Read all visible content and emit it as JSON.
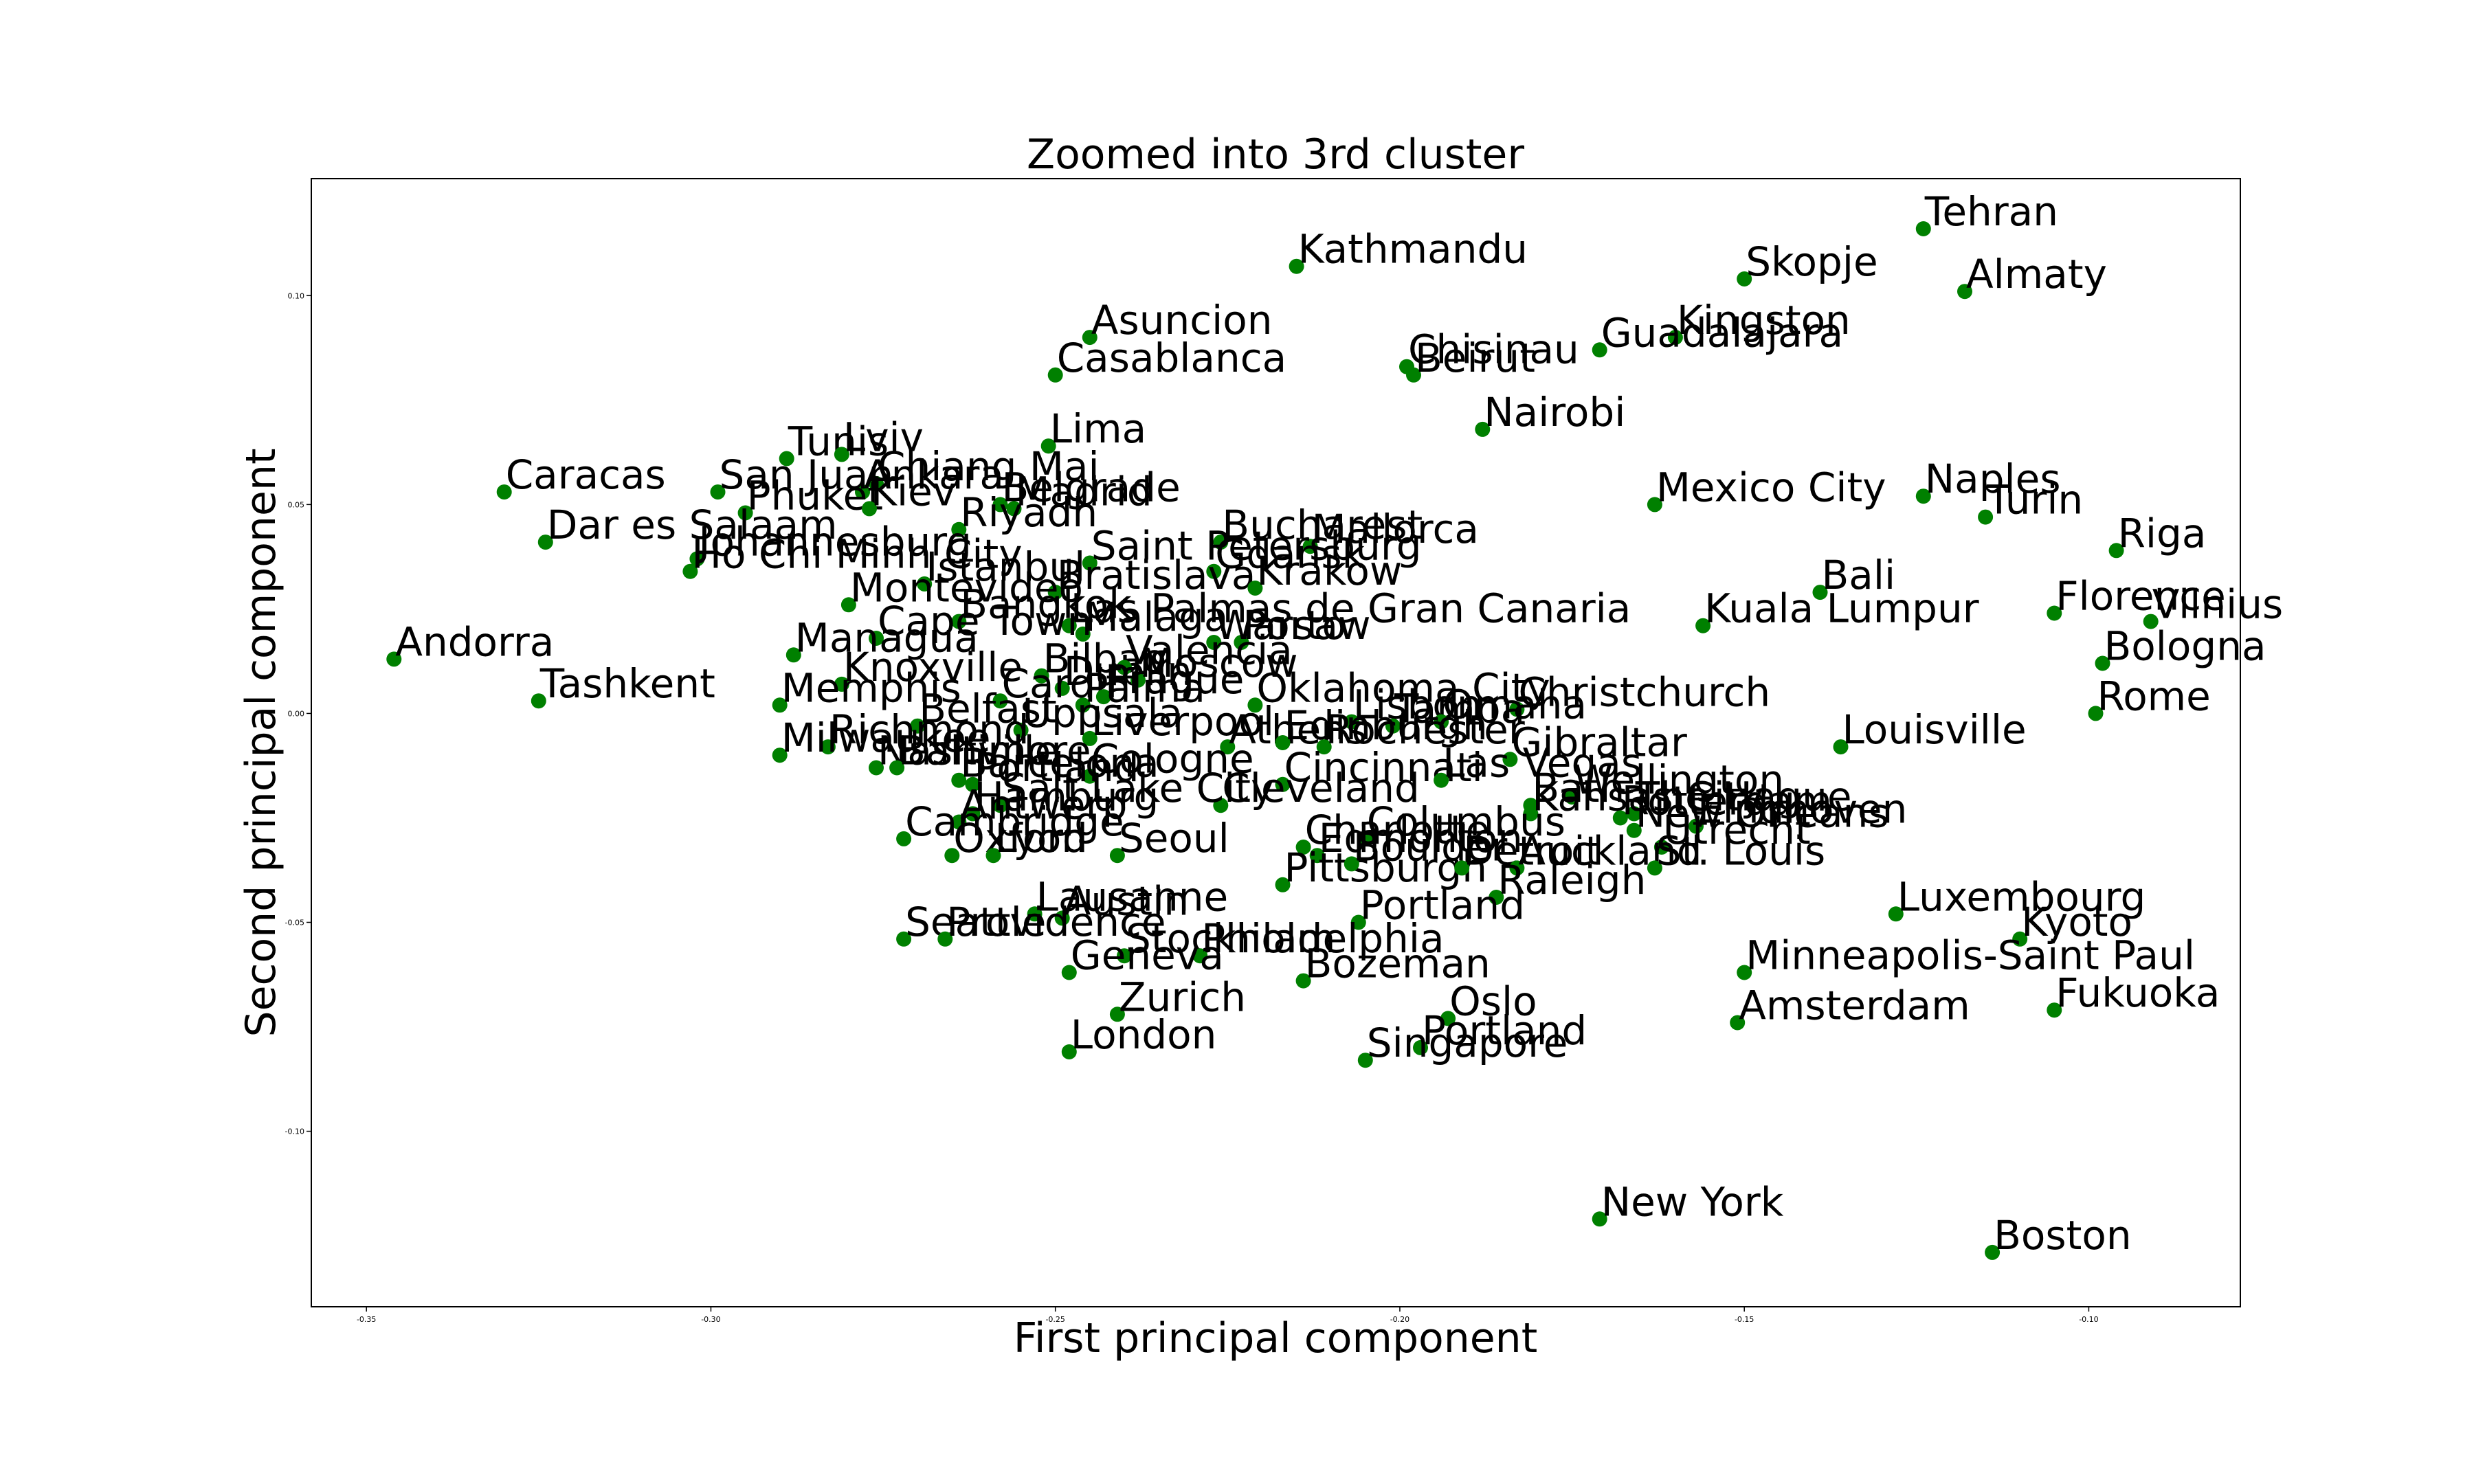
{
  "chart_data": {
    "type": "scatter",
    "title": "Zoomed into 3rd cluster",
    "xlabel": "First principal component",
    "ylabel": "Second principal component",
    "xlim": [
      -0.358,
      -0.078
    ],
    "ylim": [
      -0.142,
      0.128
    ],
    "xticks": [
      {
        "value": -0.35,
        "label": "-0.35"
      },
      {
        "value": -0.3,
        "label": "-0.30"
      },
      {
        "value": -0.25,
        "label": "-0.25"
      },
      {
        "value": -0.2,
        "label": "-0.20"
      },
      {
        "value": -0.15,
        "label": "-0.15"
      },
      {
        "value": -0.1,
        "label": "-0.10"
      }
    ],
    "yticks": [
      {
        "value": 0.1,
        "label": "0.10"
      },
      {
        "value": 0.05,
        "label": "0.05"
      },
      {
        "value": 0.0,
        "label": "0.00"
      },
      {
        "value": -0.05,
        "label": "-0.05"
      },
      {
        "value": -0.1,
        "label": "-0.10"
      }
    ],
    "grid": false,
    "marker_color": "#008000",
    "points": [
      {
        "label": "Tehran",
        "x": -0.124,
        "y": 0.116
      },
      {
        "label": "Skopje",
        "x": -0.15,
        "y": 0.104
      },
      {
        "label": "Almaty",
        "x": -0.118,
        "y": 0.101
      },
      {
        "label": "Kathmandu",
        "x": -0.215,
        "y": 0.107
      },
      {
        "label": "Asuncion",
        "x": -0.245,
        "y": 0.09
      },
      {
        "label": "Casablanca",
        "x": -0.25,
        "y": 0.081
      },
      {
        "label": "Kingston",
        "x": -0.16,
        "y": 0.09
      },
      {
        "label": "Guadalajara",
        "x": -0.171,
        "y": 0.087
      },
      {
        "label": "Chisinau",
        "x": -0.199,
        "y": 0.083
      },
      {
        "label": "Beirut",
        "x": -0.198,
        "y": 0.081
      },
      {
        "label": "Nairobi",
        "x": -0.188,
        "y": 0.068
      },
      {
        "label": "Lima",
        "x": -0.251,
        "y": 0.064
      },
      {
        "label": "Tunis",
        "x": -0.289,
        "y": 0.061
      },
      {
        "label": "Lviv",
        "x": -0.281,
        "y": 0.062
      },
      {
        "label": "Chiang Mai",
        "x": -0.276,
        "y": 0.055
      },
      {
        "label": "Ankara",
        "x": -0.278,
        "y": 0.053
      },
      {
        "label": "Belgrade",
        "x": -0.258,
        "y": 0.05
      },
      {
        "label": "Caracas",
        "x": -0.33,
        "y": 0.053
      },
      {
        "label": "San Juan",
        "x": -0.299,
        "y": 0.053
      },
      {
        "label": "Phuket",
        "x": -0.295,
        "y": 0.048
      },
      {
        "label": "Kiev",
        "x": -0.277,
        "y": 0.049
      },
      {
        "label": "Madrid",
        "x": -0.256,
        "y": 0.049
      },
      {
        "label": "Riyadh",
        "x": -0.264,
        "y": 0.044
      },
      {
        "label": "Mexico City",
        "x": -0.163,
        "y": 0.05
      },
      {
        "label": "Naples",
        "x": -0.124,
        "y": 0.052
      },
      {
        "label": "Turin",
        "x": -0.115,
        "y": 0.047
      },
      {
        "label": "Riga",
        "x": -0.096,
        "y": 0.039
      },
      {
        "label": "Dar es Salaam",
        "x": -0.324,
        "y": 0.041
      },
      {
        "label": "Johannesburg",
        "x": -0.302,
        "y": 0.037
      },
      {
        "label": "Ho Chi Minh City",
        "x": -0.303,
        "y": 0.034
      },
      {
        "label": "Bucharest",
        "x": -0.226,
        "y": 0.041
      },
      {
        "label": "Mallorca",
        "x": -0.213,
        "y": 0.04
      },
      {
        "label": "Saint Petersburg",
        "x": -0.245,
        "y": 0.036
      },
      {
        "label": "Gdansk",
        "x": -0.227,
        "y": 0.034
      },
      {
        "label": "Istanbul",
        "x": -0.269,
        "y": 0.031
      },
      {
        "label": "Bratislava",
        "x": -0.25,
        "y": 0.029
      },
      {
        "label": "Krakow",
        "x": -0.221,
        "y": 0.03
      },
      {
        "label": "Montevideo",
        "x": -0.28,
        "y": 0.026
      },
      {
        "label": "Bangkok",
        "x": -0.264,
        "y": 0.022
      },
      {
        "label": "Las Palmas de Gran Canaria",
        "x": -0.248,
        "y": 0.021
      },
      {
        "label": "Malaga",
        "x": -0.246,
        "y": 0.019
      },
      {
        "label": "Porto",
        "x": -0.223,
        "y": 0.017
      },
      {
        "label": "Warsaw",
        "x": -0.227,
        "y": 0.017
      },
      {
        "label": "Cape Town",
        "x": -0.276,
        "y": 0.018
      },
      {
        "label": "Bali",
        "x": -0.139,
        "y": 0.029
      },
      {
        "label": "Kuala Lumpur",
        "x": -0.156,
        "y": 0.021
      },
      {
        "label": "Florence",
        "x": -0.105,
        "y": 0.024
      },
      {
        "label": "Vilnius",
        "x": -0.091,
        "y": 0.022
      },
      {
        "label": "Bologna",
        "x": -0.098,
        "y": 0.012
      },
      {
        "label": "Rome",
        "x": -0.099,
        "y": 0.0
      },
      {
        "label": "Andorra",
        "x": -0.346,
        "y": 0.013
      },
      {
        "label": "Managua",
        "x": -0.288,
        "y": 0.014
      },
      {
        "label": "Tashkent",
        "x": -0.325,
        "y": 0.003
      },
      {
        "label": "Knoxville",
        "x": -0.281,
        "y": 0.007
      },
      {
        "label": "Memphis",
        "x": -0.29,
        "y": 0.002
      },
      {
        "label": "Bilbao",
        "x": -0.252,
        "y": 0.009
      },
      {
        "label": "Dublin",
        "x": -0.249,
        "y": 0.006
      },
      {
        "label": "Valencia",
        "x": -0.24,
        "y": 0.011
      },
      {
        "label": "Moscow",
        "x": -0.238,
        "y": 0.008
      },
      {
        "label": "Cardiff",
        "x": -0.258,
        "y": 0.003
      },
      {
        "label": "Prague",
        "x": -0.243,
        "y": 0.004
      },
      {
        "label": "Palma",
        "x": -0.246,
        "y": 0.002
      },
      {
        "label": "Oklahoma City",
        "x": -0.221,
        "y": 0.002
      },
      {
        "label": "Christchurch",
        "x": -0.183,
        "y": 0.001
      },
      {
        "label": "Lisbon",
        "x": -0.207,
        "y": -0.002
      },
      {
        "label": "Tampa",
        "x": -0.201,
        "y": -0.003
      },
      {
        "label": "Omaha",
        "x": -0.194,
        "y": -0.002
      },
      {
        "label": "Belfast",
        "x": -0.27,
        "y": -0.003
      },
      {
        "label": "Uppsala",
        "x": -0.255,
        "y": -0.004
      },
      {
        "label": "Louisville",
        "x": -0.136,
        "y": -0.008
      },
      {
        "label": "Richmond",
        "x": -0.283,
        "y": -0.008
      },
      {
        "label": "Milwaukee",
        "x": -0.29,
        "y": -0.01
      },
      {
        "label": "Liverpool",
        "x": -0.245,
        "y": -0.006
      },
      {
        "label": "Athens",
        "x": -0.225,
        "y": -0.008
      },
      {
        "label": "Edinburgh",
        "x": -0.217,
        "y": -0.007
      },
      {
        "label": "Rochester",
        "x": -0.211,
        "y": -0.008
      },
      {
        "label": "Gibraltar",
        "x": -0.184,
        "y": -0.011
      },
      {
        "label": "Nashville",
        "x": -0.276,
        "y": -0.013
      },
      {
        "label": "Baltimore",
        "x": -0.273,
        "y": -0.013
      },
      {
        "label": "Cologne",
        "x": -0.245,
        "y": -0.015
      },
      {
        "label": "Cincinnati",
        "x": -0.217,
        "y": -0.017
      },
      {
        "label": "Las Vegas",
        "x": -0.194,
        "y": -0.016
      },
      {
        "label": "Barcelona",
        "x": -0.264,
        "y": -0.016
      },
      {
        "label": "Portland",
        "x": -0.262,
        "y": -0.017
      },
      {
        "label": "Cleveland",
        "x": -0.226,
        "y": -0.022
      },
      {
        "label": "Wellington",
        "x": -0.175,
        "y": -0.02
      },
      {
        "label": "Bath",
        "x": -0.181,
        "y": -0.022
      },
      {
        "label": "The Hague",
        "x": -0.166,
        "y": -0.024
      },
      {
        "label": "Salt Lake City",
        "x": -0.258,
        "y": -0.022
      },
      {
        "label": "Kansas City",
        "x": -0.181,
        "y": -0.024
      },
      {
        "label": "Rotterdam",
        "x": -0.168,
        "y": -0.025
      },
      {
        "label": "Eindhoven",
        "x": -0.157,
        "y": -0.027
      },
      {
        "label": "New Orleans",
        "x": -0.166,
        "y": -0.028
      },
      {
        "label": "Hamburg",
        "x": -0.262,
        "y": -0.024
      },
      {
        "label": "Antwerp",
        "x": -0.264,
        "y": -0.026
      },
      {
        "label": "Boston",
        "x": -0.114,
        "y": -0.129
      },
      {
        "label": "Columbus",
        "x": -0.205,
        "y": -0.03
      },
      {
        "label": "Charlotte",
        "x": -0.214,
        "y": -0.032
      },
      {
        "label": "Utrecht",
        "x": -0.162,
        "y": -0.032
      },
      {
        "label": "Cambridge",
        "x": -0.272,
        "y": -0.03
      },
      {
        "label": "Oxford",
        "x": -0.265,
        "y": -0.034
      },
      {
        "label": "Seoul",
        "x": -0.241,
        "y": -0.034
      },
      {
        "label": "Lyon",
        "x": -0.259,
        "y": -0.034
      },
      {
        "label": "Edmonton",
        "x": -0.212,
        "y": -0.034
      },
      {
        "label": "Pittsburgh",
        "x": -0.217,
        "y": -0.041
      },
      {
        "label": "Boulder",
        "x": -0.207,
        "y": -0.036
      },
      {
        "label": "Detroit",
        "x": -0.191,
        "y": -0.037
      },
      {
        "label": "Auckland",
        "x": -0.183,
        "y": -0.037
      },
      {
        "label": "St. Louis",
        "x": -0.163,
        "y": -0.037
      },
      {
        "label": "Raleigh",
        "x": -0.186,
        "y": -0.044
      },
      {
        "label": "Portland",
        "x": -0.206,
        "y": -0.05
      },
      {
        "label": "Luxembourg",
        "x": -0.128,
        "y": -0.048
      },
      {
        "label": "Kyoto",
        "x": -0.11,
        "y": -0.054
      },
      {
        "label": "Austin",
        "x": -0.249,
        "y": -0.049
      },
      {
        "label": "Lausanne",
        "x": -0.253,
        "y": -0.048
      },
      {
        "label": "Seattle",
        "x": -0.272,
        "y": -0.054
      },
      {
        "label": "Providence",
        "x": -0.266,
        "y": -0.054
      },
      {
        "label": "Stockholm",
        "x": -0.24,
        "y": -0.058
      },
      {
        "label": "Philadelphia",
        "x": -0.229,
        "y": -0.058
      },
      {
        "label": "Geneva",
        "x": -0.248,
        "y": -0.062
      },
      {
        "label": "Bozeman",
        "x": -0.214,
        "y": -0.064
      },
      {
        "label": "Minneapolis-Saint Paul",
        "x": -0.15,
        "y": -0.062
      },
      {
        "label": "Fukuoka",
        "x": -0.105,
        "y": -0.071
      },
      {
        "label": "Zurich",
        "x": -0.241,
        "y": -0.072
      },
      {
        "label": "Oslo",
        "x": -0.193,
        "y": -0.073
      },
      {
        "label": "Amsterdam",
        "x": -0.151,
        "y": -0.074
      },
      {
        "label": "Portland",
        "x": -0.197,
        "y": -0.08
      },
      {
        "label": "London",
        "x": -0.248,
        "y": -0.081
      },
      {
        "label": "Singapore",
        "x": -0.205,
        "y": -0.083
      },
      {
        "label": "New York",
        "x": -0.171,
        "y": -0.121
      }
    ]
  }
}
